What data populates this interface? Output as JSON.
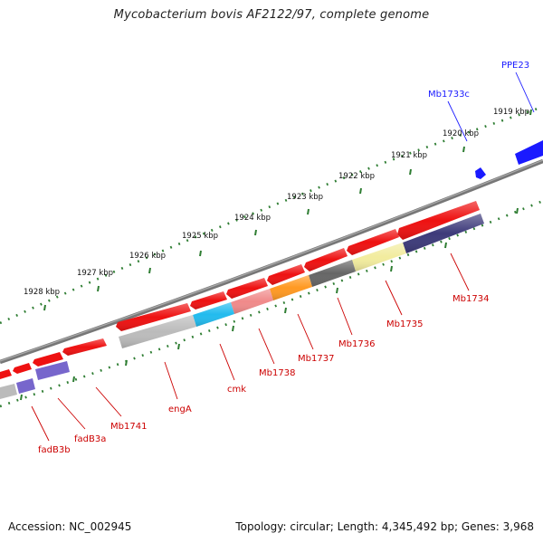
{
  "title": "Mycobacterium bovis AF2122/97, complete genome",
  "footer": {
    "accession": "Accession: NC_002945",
    "summary": "Topology: circular; Length: 4,345,492 bp; Genes: 3,968"
  },
  "ruler_ticks": [
    "1919 kbp",
    "1920 kbp",
    "1921 kbp",
    "1922 kbp",
    "1923 kbp",
    "1924 kbp",
    "1925 kbp",
    "1926 kbp",
    "1927 kbp",
    "1928 kbp"
  ],
  "colors": {
    "backbone": "#777777",
    "tick": "#2e7d32",
    "cds_forward": "#ee1111",
    "label_red": "#cc0000",
    "label_blue": "#1a1aff",
    "gene_blue": "#1a1aff",
    "cmk": "#22bbee",
    "mb1738": "#f08a8a",
    "mb1737": "#ff9922",
    "mb1736": "#666666",
    "mb1735": "#f2ec9e",
    "mb1734": "#3d3a7a",
    "engA": "#bbbbbb",
    "fadB3": "#7766cc"
  },
  "gene_labels": {
    "PPE23": "PPE23",
    "Mb1733c": "Mb1733c",
    "Mb1734": "Mb1734",
    "Mb1735": "Mb1735",
    "Mb1736": "Mb1736",
    "Mb1737": "Mb1737",
    "Mb1738": "Mb1738",
    "cmk": "cmk",
    "engA": "engA",
    "Mb1741": "Mb1741",
    "fadB3a": "fadB3a",
    "fadB3b": "fadB3b"
  }
}
